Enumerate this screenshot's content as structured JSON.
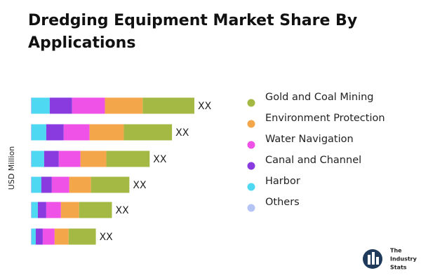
{
  "chart_data": {
    "type": "stacked-bar-horizontal",
    "title": "Dredging Equipment Market Share By Applications",
    "y_label": "USD Million",
    "categories": [
      null,
      null,
      null,
      null,
      null,
      null
    ],
    "series": [
      {
        "name": "Others",
        "color": "#b3c4f5",
        "values": [
          1,
          1,
          1,
          1,
          1,
          1
        ]
      },
      {
        "name": "Harbor",
        "color": "#4fd8f2",
        "values": [
          26,
          21,
          18,
          14,
          9,
          6
        ]
      },
      {
        "name": "Canal and Channel",
        "color": "#8a3be0",
        "values": [
          32,
          25,
          21,
          15,
          12,
          10
        ]
      },
      {
        "name": "Water Navigation",
        "color": "#ee52e6",
        "values": [
          47,
          37,
          31,
          25,
          21,
          17
        ]
      },
      {
        "name": "Environment Protection",
        "color": "#f4a64a",
        "values": [
          54,
          49,
          37,
          31,
          26,
          20
        ]
      },
      {
        "name": "Gold and Coal Mining",
        "color": "#a4b944",
        "values": [
          74,
          69,
          62,
          55,
          47,
          39
        ]
      }
    ],
    "bar_labels": [
      "XX",
      "XX",
      "XX",
      "XX",
      "XX",
      "XX"
    ],
    "legend": "right"
  },
  "logo": [
    "The",
    "Industry",
    "Stats"
  ]
}
